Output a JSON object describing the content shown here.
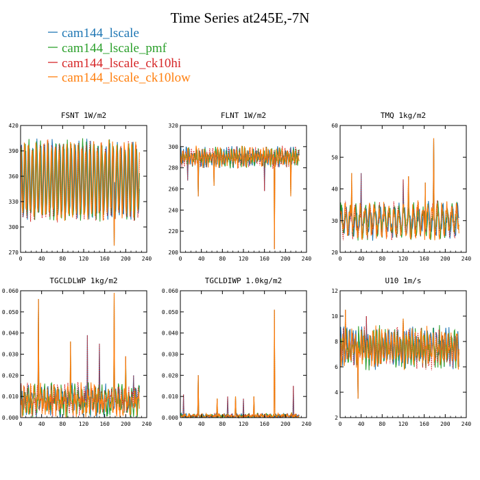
{
  "title": "Time Series at245E,-7N",
  "colors": [
    "#1f77b4",
    "#2ca02c",
    "#d62728",
    "#ff7f0e"
  ],
  "legend": [
    "cam144_lscale",
    "cam144_lscale_pmf",
    "cam144_lscale_ck10hi",
    "cam144_lscale_ck10low"
  ],
  "chart_data": [
    {
      "type": "line",
      "title": "FSNT  1W/m2",
      "xlim": [
        0,
        240
      ],
      "ylim": [
        270,
        420
      ],
      "xticks": [
        "0",
        "40",
        "80",
        "120",
        "160",
        "200",
        "240"
      ],
      "yticks": [
        "270",
        "300",
        "330",
        "360",
        "390",
        "420"
      ],
      "base": 355,
      "amp": 42,
      "period": 7.3,
      "noise": 8,
      "seed": 11,
      "spikes": [
        [
          178,
          278
        ]
      ],
      "x_end": 226
    },
    {
      "type": "line",
      "title": "FLNT  1W/m2",
      "xlim": [
        0,
        240
      ],
      "ylim": [
        200,
        320
      ],
      "xticks": [
        "0",
        "40",
        "80",
        "120",
        "160",
        "200",
        "240"
      ],
      "yticks": [
        "200",
        "220",
        "240",
        "260",
        "280",
        "300",
        "320"
      ],
      "base": 290,
      "amp": 6,
      "period": 5.1,
      "noise": 5,
      "seed": 23,
      "spikes": [
        [
          34,
          253
        ],
        [
          179,
          203
        ],
        [
          14,
          268
        ],
        [
          64,
          263
        ],
        [
          160,
          258
        ],
        [
          210,
          253
        ]
      ],
      "x_end": 226
    },
    {
      "type": "line",
      "title": "TMQ  1kg/m2",
      "xlim": [
        0,
        240
      ],
      "ylim": [
        20,
        60
      ],
      "xticks": [
        "0",
        "40",
        "80",
        "120",
        "160",
        "200",
        "240"
      ],
      "yticks": [
        "20",
        "30",
        "40",
        "50",
        "60"
      ],
      "base": 30,
      "amp": 4,
      "period": 9.2,
      "noise": 2.5,
      "seed": 37,
      "spikes": [
        [
          178,
          56
        ],
        [
          22,
          45
        ],
        [
          40,
          45
        ],
        [
          130,
          44
        ],
        [
          120,
          43
        ],
        [
          162,
          42
        ]
      ],
      "x_end": 226
    },
    {
      "type": "line",
      "title": "TGCLDLWP  1kg/m2",
      "xlim": [
        0,
        240
      ],
      "ylim": [
        0,
        0.06
      ],
      "xticks": [
        "0",
        "40",
        "80",
        "120",
        "160",
        "200",
        "240"
      ],
      "yticks": [
        "0.000",
        "0.010",
        "0.020",
        "0.030",
        "0.040",
        "0.050",
        "0.060"
      ],
      "base": 0.008,
      "amp": 0.004,
      "period": 6.4,
      "noise": 0.005,
      "seed": 51,
      "spikes": [
        [
          34,
          0.056
        ],
        [
          178,
          0.059
        ],
        [
          127,
          0.039
        ],
        [
          95,
          0.036
        ],
        [
          150,
          0.035
        ],
        [
          200,
          0.029
        ],
        [
          215,
          0.02
        ]
      ],
      "x_end": 226
    },
    {
      "type": "line",
      "title": "TGCLDIWP  1.0kg/m2",
      "xlim": [
        0,
        240
      ],
      "ylim": [
        0,
        0.06
      ],
      "xticks": [
        "0",
        "40",
        "80",
        "120",
        "160",
        "200",
        "240"
      ],
      "yticks": [
        "0.000",
        "0.010",
        "0.020",
        "0.030",
        "0.040",
        "0.050",
        "0.060"
      ],
      "base": 0.0007,
      "amp": 0.0005,
      "period": 8.1,
      "noise": 0.0009,
      "seed": 67,
      "spikes": [
        [
          34,
          0.02
        ],
        [
          179,
          0.051
        ],
        [
          6,
          0.011
        ],
        [
          70,
          0.009
        ],
        [
          90,
          0.01
        ],
        [
          105,
          0.01
        ],
        [
          120,
          0.009
        ],
        [
          140,
          0.01
        ],
        [
          215,
          0.015
        ]
      ],
      "x_end": 226
    },
    {
      "type": "line",
      "title": "U10  1m/s",
      "xlim": [
        0,
        240
      ],
      "ylim": [
        2,
        12
      ],
      "xticks": [
        "0",
        "40",
        "80",
        "120",
        "160",
        "200",
        "240"
      ],
      "yticks": [
        "2",
        "4",
        "6",
        "8",
        "10",
        "12"
      ],
      "base": 7.5,
      "amp": 1.0,
      "period": 5.7,
      "noise": 0.8,
      "seed": 83,
      "spikes": [
        [
          34,
          3.5
        ],
        [
          10,
          10.5
        ],
        [
          50,
          10.0
        ],
        [
          120,
          9.8
        ]
      ],
      "x_end": 226
    }
  ]
}
